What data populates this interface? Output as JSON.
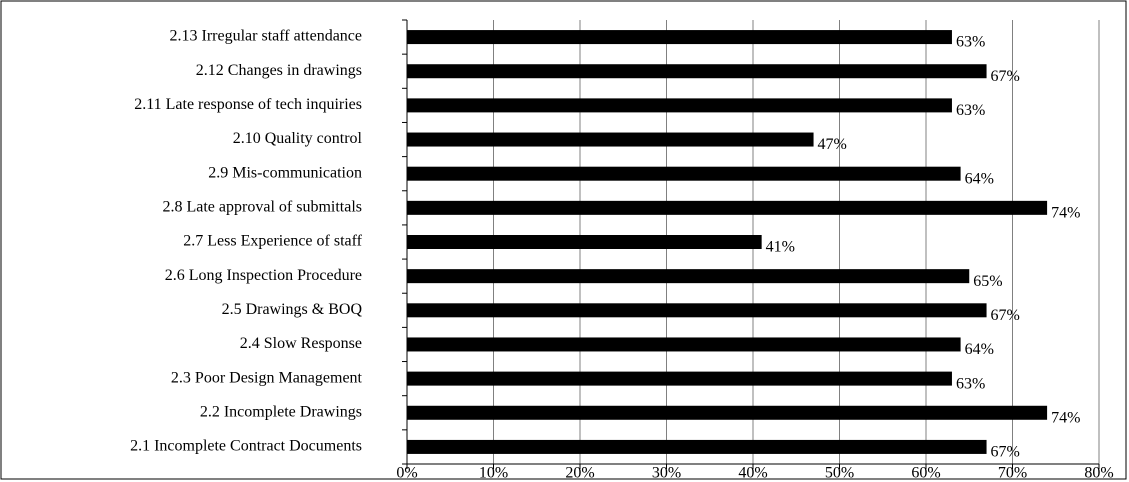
{
  "chart_data": {
    "type": "bar",
    "orientation": "horizontal",
    "categories": [
      "2.1 Incomplete Contract Documents",
      "2.2 Incomplete Drawings",
      "2.3 Poor Design Management",
      "2.4 Slow Response",
      "2.5 Drawings & BOQ",
      "2.6 Long Inspection Procedure",
      "2.7 Less Experience of staff",
      "2.8 Late approval of submittals",
      "2.9 Mis-communication",
      "2.10 Quality control",
      "2.11 Late response of tech inquiries",
      "2.12 Changes in drawings",
      "2.13 Irregular staff attendance"
    ],
    "values": [
      67,
      74,
      63,
      64,
      67,
      65,
      41,
      74,
      64,
      47,
      63,
      67,
      63
    ],
    "value_labels": [
      "67%",
      "74%",
      "63%",
      "64%",
      "67%",
      "65%",
      "41%",
      "74%",
      "64%",
      "47%",
      "63%",
      "67%",
      "63%"
    ],
    "color": "#000000",
    "xlim": [
      0,
      80
    ],
    "xticks": [
      {
        "value": 0,
        "label": "0%"
      },
      {
        "value": 10,
        "label": "10%"
      },
      {
        "value": 20,
        "label": "20%"
      },
      {
        "value": 30,
        "label": "30%"
      },
      {
        "value": 40,
        "label": "40%"
      },
      {
        "value": 50,
        "label": "50%"
      },
      {
        "value": 60,
        "label": "60%"
      },
      {
        "value": 70,
        "label": "70%"
      },
      {
        "value": 80,
        "label": "80%"
      }
    ],
    "grid": true
  }
}
